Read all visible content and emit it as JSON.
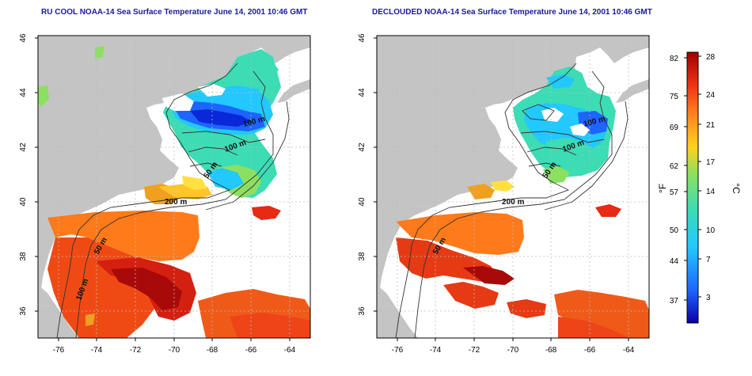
{
  "panels": [
    {
      "title": "RU COOL NOAA-14 Sea Surface Temperature June 14, 2001 10:46 GMT",
      "contours": [
        "50 m",
        "100 m",
        "100 m",
        "200 m",
        "50 m",
        "100 m"
      ]
    },
    {
      "title": "DECLOUDED NOAA-14 Sea Surface Temperature June 14, 2001 10:46 GMT",
      "contours": [
        "100 m",
        "100 m",
        "50 m",
        "200 m",
        "50 m"
      ]
    }
  ],
  "x_ticks": [
    "-76",
    "-74",
    "-72",
    "-70",
    "-68",
    "-66",
    "-64"
  ],
  "y_ticks": [
    "36",
    "38",
    "40",
    "42",
    "44",
    "46"
  ],
  "colorbar": {
    "fahrenheit_ticks": [
      "82",
      "75",
      "69",
      "62",
      "57",
      "50",
      "44",
      "37"
    ],
    "celsius_ticks": [
      "28",
      "24",
      "21",
      "17",
      "14",
      "10",
      "7",
      "3"
    ],
    "fahrenheit_label": "°F",
    "celsius_label": "°C",
    "colors": [
      "#0a00a8",
      "#1e64ff",
      "#22c8ff",
      "#3cdcb4",
      "#8ce060",
      "#ffd21e",
      "#ff8a1e",
      "#ee3216",
      "#a00000"
    ]
  },
  "colors": {
    "land": "#c4c4c4",
    "ocean_cloud": "#ffffff",
    "frame": "#000000",
    "title": "#1a1a99"
  }
}
